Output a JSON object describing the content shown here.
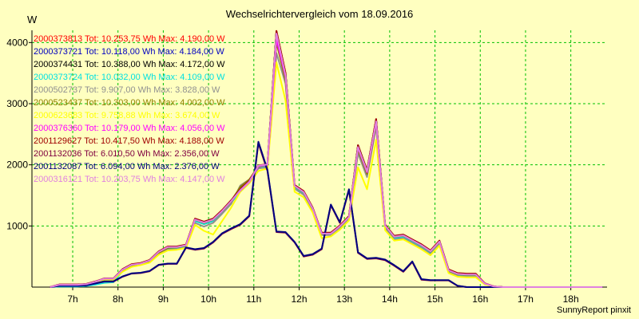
{
  "chart_data": {
    "type": "line",
    "title": "Wechselrichtervergleich vom 18.09.2016",
    "ylabel": "W",
    "xlabel": "",
    "footer": "SunnyReport pinxit",
    "ylim": [
      0,
      4200
    ],
    "xlim": [
      6.1,
      18.8
    ],
    "grid": true,
    "legend_position": "top-left",
    "y_ticks": [
      {
        "v": 1000,
        "label": "1000"
      },
      {
        "v": 2000,
        "label": "2000"
      },
      {
        "v": 3000,
        "label": "3000"
      },
      {
        "v": 4000,
        "label": "4000"
      }
    ],
    "x_ticks": [
      {
        "v": 7,
        "label": "7h"
      },
      {
        "v": 8,
        "label": "8h"
      },
      {
        "v": 9,
        "label": "9h"
      },
      {
        "v": 10,
        "label": "10h"
      },
      {
        "v": 11,
        "label": "11h"
      },
      {
        "v": 12,
        "label": "12h"
      },
      {
        "v": 13,
        "label": "13h"
      },
      {
        "v": 14,
        "label": "14h"
      },
      {
        "v": 15,
        "label": "15h"
      },
      {
        "v": 16,
        "label": "16h"
      },
      {
        "v": 17,
        "label": "17h"
      },
      {
        "v": 18,
        "label": "18h"
      }
    ],
    "x": [
      6.5,
      6.7,
      6.9,
      7.1,
      7.3,
      7.5,
      7.7,
      7.9,
      8.1,
      8.3,
      8.5,
      8.7,
      8.9,
      9.1,
      9.3,
      9.5,
      9.7,
      9.9,
      10.1,
      10.3,
      10.5,
      10.7,
      10.9,
      11.1,
      11.3,
      11.5,
      11.7,
      11.9,
      12.1,
      12.3,
      12.5,
      12.7,
      12.9,
      13.1,
      13.3,
      13.5,
      13.7,
      13.9,
      14.1,
      14.3,
      14.5,
      14.7,
      14.9,
      15.1,
      15.3,
      15.5,
      15.7,
      15.9,
      16.1,
      16.3,
      16.5,
      16.7,
      16.9,
      17.1,
      17.3,
      17.5,
      17.7,
      17.9,
      18.1,
      18.3,
      18.5,
      18.7
    ],
    "series": [
      {
        "name": "2000373813 Tot: 10.253,75 Wh Max: 4.190,00 W",
        "color": "#ff0000",
        "values": [
          0,
          40,
          40,
          40,
          50,
          90,
          140,
          140,
          280,
          360,
          390,
          430,
          570,
          640,
          650,
          680,
          1100,
          1050,
          1100,
          1240,
          1400,
          1580,
          1720,
          1980,
          2000,
          4190,
          3500,
          1650,
          1550,
          1280,
          880,
          880,
          1000,
          1150,
          2310,
          1900,
          2740,
          1000,
          820,
          840,
          760,
          680,
          580,
          740,
          270,
          210,
          200,
          200,
          60,
          10,
          0,
          0,
          0,
          0,
          0,
          0,
          0,
          0,
          0,
          0,
          0,
          0
        ]
      },
      {
        "name": "2000373721 Tot: 10.118,00 Wh Max: 4.184,00 W",
        "color": "#0000c0",
        "values": [
          0,
          35,
          35,
          35,
          45,
          85,
          130,
          130,
          270,
          350,
          380,
          420,
          560,
          630,
          640,
          670,
          1090,
          1040,
          1090,
          1230,
          1390,
          1570,
          1710,
          1970,
          1990,
          4184,
          3490,
          1640,
          1540,
          1270,
          870,
          870,
          990,
          1140,
          2300,
          1890,
          2730,
          990,
          810,
          830,
          750,
          670,
          570,
          730,
          260,
          200,
          190,
          190,
          55,
          8,
          0,
          0,
          0,
          0,
          0,
          0,
          0,
          0,
          0,
          0,
          0,
          0
        ]
      },
      {
        "name": "2000374431 Tot: 10.388,00 Wh Max: 4.172,00 W",
        "color": "#000000",
        "values": [
          0,
          40,
          40,
          40,
          50,
          90,
          140,
          140,
          290,
          370,
          390,
          430,
          570,
          650,
          660,
          690,
          1110,
          1060,
          1110,
          1250,
          1410,
          1630,
          1750,
          1980,
          2010,
          4172,
          3480,
          1660,
          1560,
          1290,
          880,
          890,
          1000,
          1160,
          2320,
          1910,
          2740,
          1010,
          830,
          850,
          770,
          690,
          590,
          750,
          280,
          220,
          210,
          210,
          60,
          10,
          0,
          0,
          0,
          0,
          0,
          0,
          0,
          0,
          0,
          0,
          0,
          0
        ]
      },
      {
        "name": "2000373724 Tot: 10.032,00 Wh Max: 4.109,00 W",
        "color": "#00e0e0",
        "values": [
          0,
          10,
          10,
          10,
          20,
          40,
          70,
          80,
          260,
          340,
          370,
          410,
          550,
          620,
          630,
          660,
          1080,
          1030,
          1080,
          1220,
          1380,
          1560,
          1700,
          1960,
          1980,
          4109,
          3480,
          1630,
          1530,
          1260,
          860,
          860,
          980,
          1130,
          2290,
          1880,
          2720,
          980,
          800,
          820,
          740,
          660,
          560,
          720,
          250,
          190,
          180,
          180,
          50,
          5,
          0,
          0,
          0,
          0,
          0,
          0,
          0,
          0,
          0,
          0,
          0,
          0
        ]
      },
      {
        "name": "2000502737 Tot: 9.907,00 Wh Max: 3.828,00 W",
        "color": "#909090",
        "values": [
          0,
          35,
          35,
          35,
          45,
          80,
          130,
          130,
          260,
          340,
          370,
          410,
          540,
          610,
          620,
          650,
          1050,
          990,
          1050,
          1200,
          1360,
          1660,
          1760,
          1940,
          1960,
          3828,
          3330,
          1610,
          1510,
          1240,
          850,
          850,
          970,
          1110,
          2190,
          1800,
          2620,
          960,
          780,
          800,
          720,
          640,
          540,
          700,
          240,
          180,
          170,
          170,
          50,
          5,
          0,
          0,
          0,
          0,
          0,
          0,
          0,
          0,
          0,
          0,
          0,
          0
        ]
      },
      {
        "name": "2000523437 Tot: 10.303,00 Wh Max: 4.002,00 W",
        "color": "#908000",
        "values": [
          0,
          38,
          38,
          38,
          48,
          88,
          138,
          138,
          280,
          360,
          385,
          425,
          560,
          640,
          650,
          680,
          1100,
          1050,
          1100,
          1240,
          1400,
          1640,
          1760,
          1970,
          2000,
          4002,
          3380,
          1650,
          1550,
          1280,
          870,
          880,
          990,
          1150,
          2250,
          1850,
          2680,
          1000,
          820,
          840,
          760,
          680,
          580,
          740,
          270,
          210,
          200,
          200,
          58,
          8,
          0,
          0,
          0,
          0,
          0,
          0,
          0,
          0,
          0,
          0,
          0,
          0
        ]
      },
      {
        "name": "2000623683 Tot: 9.758,88 Wh Max: 3.674,00 W",
        "color": "#ffff00",
        "values": [
          0,
          30,
          30,
          30,
          40,
          75,
          120,
          120,
          250,
          330,
          360,
          400,
          530,
          600,
          610,
          640,
          1020,
          920,
          860,
          1080,
          1300,
          1560,
          1700,
          1900,
          1940,
          3674,
          3050,
          1560,
          1470,
          1220,
          800,
          830,
          940,
          1090,
          1960,
          1600,
          2410,
          930,
          760,
          780,
          700,
          620,
          520,
          680,
          230,
          170,
          160,
          160,
          45,
          5,
          0,
          0,
          0,
          0,
          0,
          0,
          0,
          0,
          0,
          0,
          0,
          0
        ]
      },
      {
        "name": "2000376360 Tot: 10.179,00 Wh Max: 4.056,00 W",
        "color": "#ff00ff",
        "values": [
          0,
          40,
          40,
          40,
          50,
          90,
          140,
          140,
          290,
          370,
          390,
          440,
          580,
          660,
          660,
          690,
          1110,
          1060,
          1110,
          1250,
          1410,
          1580,
          1720,
          1980,
          2000,
          4056,
          3440,
          1660,
          1560,
          1290,
          880,
          880,
          1000,
          1150,
          2280,
          1880,
          2700,
          1010,
          830,
          850,
          770,
          690,
          590,
          750,
          280,
          220,
          210,
          210,
          60,
          10,
          0,
          0,
          0,
          0,
          0,
          0,
          0,
          0,
          0,
          0,
          0,
          0
        ]
      },
      {
        "name": "2001129627 Tot: 10.417,50 Wh Max: 4.188,00 W",
        "color": "#a00000",
        "values": [
          0,
          42,
          42,
          42,
          52,
          92,
          142,
          142,
          295,
          375,
          395,
          445,
          585,
          665,
          665,
          695,
          1120,
          1070,
          1120,
          1260,
          1420,
          1600,
          1740,
          1990,
          2010,
          4188,
          3500,
          1670,
          1570,
          1300,
          890,
          890,
          1010,
          1160,
          2320,
          1910,
          2750,
          1020,
          840,
          860,
          780,
          700,
          600,
          760,
          290,
          230,
          220,
          220,
          62,
          10,
          0,
          0,
          0,
          0,
          0,
          0,
          0,
          0,
          0,
          0,
          0,
          0
        ]
      },
      {
        "name": "2001132036 Tot: 6.010,50 Wh Max: 2.356,00 W",
        "color": "#800040",
        "values": [
          0,
          20,
          20,
          20,
          30,
          60,
          90,
          90,
          170,
          220,
          230,
          260,
          360,
          380,
          380,
          640,
          610,
          630,
          730,
          870,
          950,
          1020,
          1160,
          2356,
          1900,
          900,
          890,
          730,
          500,
          530,
          620,
          1340,
          1050,
          1590,
          560,
          460,
          470,
          440,
          350,
          250,
          410,
          120,
          110,
          110,
          110,
          20,
          0,
          0,
          0,
          0,
          0,
          0,
          0,
          0,
          0,
          0,
          0,
          0,
          0,
          0,
          0,
          0
        ]
      },
      {
        "name": "2001132087 Tot: 6.094,00 Wh Max: 2.376,00 W",
        "color": "#000080",
        "values": [
          0,
          20,
          20,
          20,
          30,
          60,
          95,
          95,
          175,
          225,
          235,
          265,
          365,
          385,
          385,
          650,
          620,
          640,
          740,
          880,
          960,
          1030,
          1170,
          2376,
          1920,
          910,
          900,
          740,
          510,
          540,
          630,
          1350,
          1060,
          1600,
          570,
          470,
          480,
          450,
          360,
          260,
          420,
          130,
          115,
          115,
          115,
          22,
          0,
          0,
          0,
          0,
          0,
          0,
          0,
          0,
          0,
          0,
          0,
          0,
          0,
          0,
          0,
          0
        ]
      },
      {
        "name": "2000316121 Tot: 10.203,75 Wh Max: 4.147,00 W",
        "color": "#e080e0",
        "values": [
          0,
          38,
          38,
          38,
          48,
          88,
          138,
          138,
          285,
          365,
          385,
          435,
          575,
          655,
          655,
          685,
          1105,
          1055,
          1105,
          1245,
          1405,
          1585,
          1725,
          1985,
          2005,
          4147,
          3460,
          1655,
          1555,
          1285,
          875,
          875,
          995,
          1145,
          2290,
          1890,
          2710,
          1005,
          825,
          845,
          765,
          685,
          585,
          745,
          275,
          215,
          205,
          205,
          58,
          9,
          0,
          0,
          0,
          0,
          0,
          0,
          0,
          0,
          0,
          0,
          0,
          0
        ]
      }
    ]
  }
}
